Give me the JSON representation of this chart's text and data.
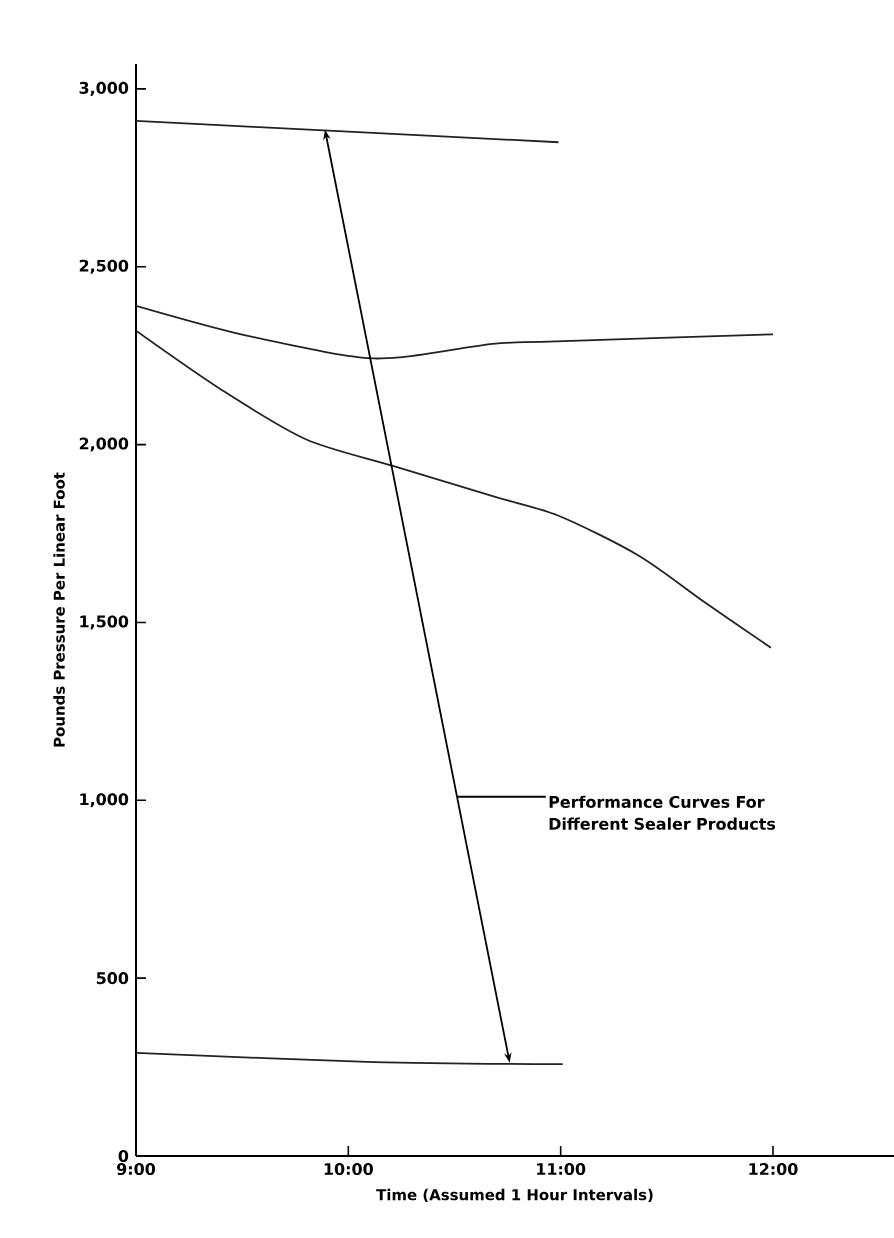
{
  "chart_data": {
    "type": "line",
    "xlabel": "Time (Assumed 1 Hour Intervals)",
    "ylabel": "Pounds Pressure Per Linear Foot",
    "annotations": [
      "Performance Curves For Different Sealer Products"
    ],
    "xlim": [
      9,
      12.57
    ],
    "ylim": [
      0,
      3070
    ],
    "xticks": [
      {
        "value": 9,
        "label": "9:00"
      },
      {
        "value": 10,
        "label": "10:00"
      },
      {
        "value": 11,
        "label": "11:00"
      },
      {
        "value": 12,
        "label": "12:00"
      }
    ],
    "yticks": [
      0,
      500,
      {
        "value": 1000,
        "label": "1,000"
      },
      {
        "value": 1500,
        "label": "1,500"
      },
      {
        "value": 2000,
        "label": "2,000"
      },
      {
        "value": 2500,
        "label": "2,500"
      },
      {
        "value": 3000,
        "label": "3,000"
      }
    ],
    "grid": false,
    "marker": "none",
    "line_style": "solid",
    "series": [
      {
        "color": "#222222",
        "x": [
          9,
          10,
          10.99
        ],
        "values": [
          2910,
          2880,
          2850
        ]
      },
      {
        "color": "#222222",
        "x": [
          9,
          9.46,
          9.99,
          10.24,
          10.68,
          10.98,
          12
        ],
        "values": [
          2390,
          2315,
          2250,
          2245,
          2283,
          2290,
          2310
        ]
      },
      {
        "color": "#222222",
        "x": [
          9,
          9.4,
          9.8,
          10.21,
          10.68,
          10.99,
          11.37,
          11.68,
          11.99
        ],
        "values": [
          2320,
          2155,
          2015,
          1940,
          1855,
          1800,
          1687,
          1556,
          1429
        ]
      },
      {
        "color": "#222222",
        "x": [
          9,
          10.12,
          11.01
        ],
        "values": [
          290,
          264,
          258
        ]
      }
    ]
  }
}
